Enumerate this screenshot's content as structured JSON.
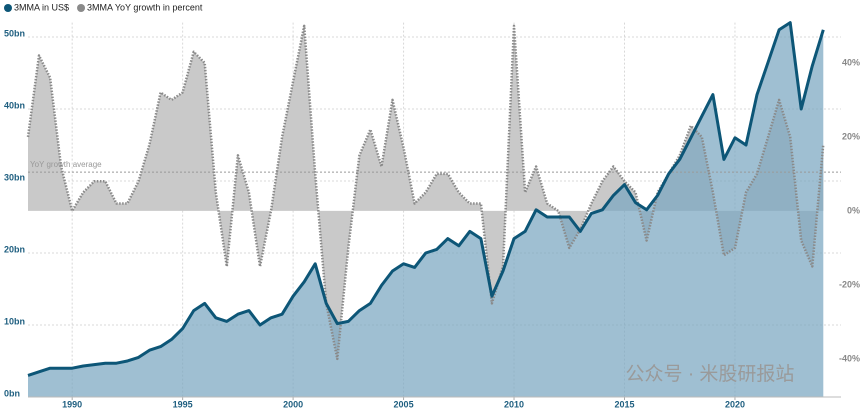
{
  "chart_data": {
    "type": "line",
    "watermark": "公众号 · 米股研报站",
    "x": [
      1988.0,
      1988.5,
      1989.0,
      1989.5,
      1990.0,
      1990.5,
      1991.0,
      1991.5,
      1992.0,
      1992.5,
      1993.0,
      1993.5,
      1994.0,
      1994.5,
      1995.0,
      1995.5,
      1996.0,
      1996.5,
      1997.0,
      1997.5,
      1998.0,
      1998.5,
      1999.0,
      1999.5,
      2000.0,
      2000.5,
      2001.0,
      2001.5,
      2002.0,
      2002.5,
      2003.0,
      2003.5,
      2004.0,
      2004.5,
      2005.0,
      2005.5,
      2006.0,
      2006.5,
      2007.0,
      2007.5,
      2008.0,
      2008.5,
      2009.0,
      2009.5,
      2010.0,
      2010.5,
      2011.0,
      2011.5,
      2012.0,
      2012.5,
      2013.0,
      2013.5,
      2014.0,
      2014.5,
      2015.0,
      2015.5,
      2016.0,
      2016.5,
      2017.0,
      2017.5,
      2018.0,
      2018.5,
      2019.0,
      2019.5,
      2020.0,
      2020.5,
      2021.0,
      2021.5,
      2022.0,
      2022.5,
      2023.0,
      2023.5,
      2024.0
    ],
    "series": [
      {
        "name": "3MMA YoY growth in percent",
        "color": "#8a8a8a",
        "fill": "#c9c9c9",
        "axis": "y2",
        "values": [
          20,
          42,
          36,
          12,
          0,
          5,
          8,
          8,
          2,
          2,
          8,
          18,
          32,
          30,
          32,
          43,
          40,
          5,
          -15,
          15,
          5,
          -15,
          0,
          20,
          35,
          50,
          10,
          -25,
          -40,
          -10,
          15,
          22,
          12,
          30,
          17,
          2,
          5,
          10,
          10,
          5,
          2,
          2,
          -25,
          -15,
          50,
          5,
          12,
          2,
          0,
          -10,
          -5,
          2,
          8,
          12,
          8,
          5,
          -8,
          5,
          10,
          15,
          23,
          20,
          5,
          -12,
          -10,
          5,
          10,
          20,
          30,
          20,
          -8,
          -15,
          18
        ]
      },
      {
        "name": "3MMA in US$",
        "color": "#0d5677",
        "fill": "rgba(122,166,192,0.72)",
        "values": [
          3,
          3.5,
          4,
          4,
          4,
          4.3,
          4.5,
          4.7,
          4.7,
          5,
          5.5,
          6.5,
          7,
          8,
          9.5,
          12,
          13,
          11,
          10.5,
          11.5,
          12,
          10,
          11,
          11.5,
          14,
          16,
          18.5,
          13,
          10.2,
          10.5,
          12,
          13,
          15.5,
          17.5,
          18.5,
          18,
          20,
          20.5,
          22,
          21,
          23,
          22,
          14,
          17.5,
          22,
          23,
          26,
          25,
          25,
          25,
          23,
          25.5,
          26,
          28,
          29.5,
          27,
          26,
          28,
          31,
          33,
          36,
          39,
          42,
          33,
          36,
          35,
          42,
          46.5,
          51,
          52,
          40,
          46,
          51
        ]
      }
    ],
    "xlim": [
      1988,
      2024.8
    ],
    "xticks": [
      1990,
      1995,
      2000,
      2005,
      2010,
      2015,
      2020
    ],
    "ylim": [
      0,
      52
    ],
    "yticks": [
      {
        "value": 0,
        "label": "0bn"
      },
      {
        "value": 10,
        "label": "10bn"
      },
      {
        "value": 20,
        "label": "20bn"
      },
      {
        "value": 30,
        "label": "30bn"
      },
      {
        "value": 40,
        "label": "40bn"
      },
      {
        "value": 50,
        "label": "50bn"
      }
    ],
    "y2lim": [
      -50.3,
      50.9
    ],
    "y2ticks": [
      {
        "value": -40,
        "label": "-40%"
      },
      {
        "value": -20,
        "label": "-20%"
      },
      {
        "value": 0,
        "label": "0%"
      },
      {
        "value": 20,
        "label": "20%"
      },
      {
        "value": 40,
        "label": "40%"
      }
    ],
    "annotations": [
      {
        "text": "YoY growth average",
        "value": 10.5,
        "axis": "y2"
      }
    ],
    "grid": true,
    "legend": "top-left"
  }
}
